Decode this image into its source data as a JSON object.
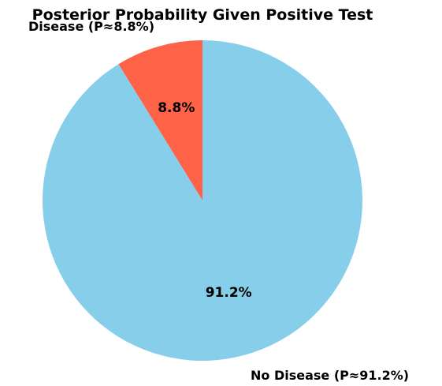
{
  "chart_data": {
    "type": "pie",
    "title": "Posterior Probability Given Positive Test",
    "slices": [
      {
        "label": "Disease (P≈8.8%)",
        "value": 8.8,
        "pct_label": "8.8%",
        "color": "#ff6347"
      },
      {
        "label": "No Disease (P≈91.2%)",
        "value": 91.2,
        "pct_label": "91.2%",
        "color": "#87ceeb"
      }
    ],
    "start_angle_deg": 90,
    "direction": "counterclockwise"
  }
}
